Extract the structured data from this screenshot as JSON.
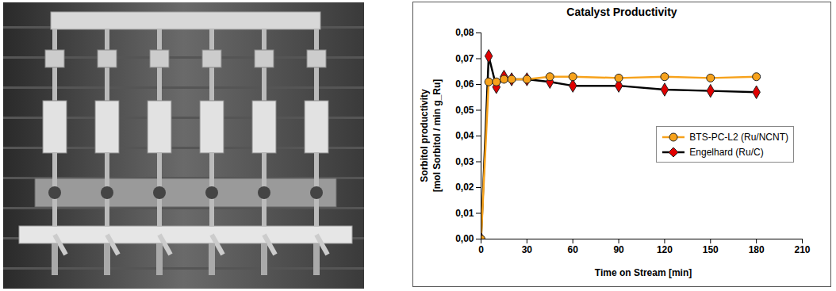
{
  "chart_data": {
    "type": "line",
    "title": "Catalyst Productivity",
    "y_label": "Sorbitol productivity\n[mol Sorbitol / min g_Ru]",
    "x_label": "Time on Stream [min]",
    "x": [
      0,
      5,
      10,
      15,
      20,
      30,
      45,
      60,
      90,
      120,
      150,
      180
    ],
    "series": [
      {
        "name": "BTS-PC-L2 (Ru/NCNT)",
        "color": "#f7a21b",
        "marker": "circle",
        "values": [
          0,
          0.061,
          0.061,
          0.062,
          0.062,
          0.062,
          0.063,
          0.063,
          0.0625,
          0.063,
          0.0625,
          0.063
        ]
      },
      {
        "name": "Engelhard (Ru/C)",
        "color": "#e00000",
        "marker": "diamond",
        "values": [
          0,
          0.071,
          0.059,
          0.063,
          0.062,
          0.062,
          0.061,
          0.0595,
          0.0595,
          0.058,
          0.0575,
          0.057
        ]
      }
    ],
    "xlim": [
      0,
      210
    ],
    "xticks": [
      0,
      30,
      60,
      90,
      120,
      150,
      180,
      210
    ],
    "ylim": [
      0,
      0.08
    ],
    "yticks": [
      {
        "value": 0,
        "label": "0,00"
      },
      {
        "value": 0.01,
        "label": "0,01"
      },
      {
        "value": 0.02,
        "label": "0,02"
      },
      {
        "value": 0.03,
        "label": "0,03"
      },
      {
        "value": 0.04,
        "label": "0,04"
      },
      {
        "value": 0.05,
        "label": "0,05"
      },
      {
        "value": 0.06,
        "label": "0,06"
      },
      {
        "value": 0.07,
        "label": "0,07"
      },
      {
        "value": 0.08,
        "label": "0,08"
      }
    ],
    "grid": false,
    "legend": "right"
  }
}
